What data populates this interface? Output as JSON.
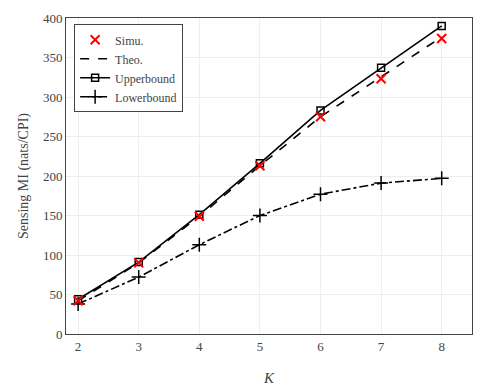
{
  "chart_data": {
    "type": "line",
    "xlabel": "K",
    "ylabel": "Sensing MI (nats/CPI)",
    "x": [
      2,
      3,
      4,
      5,
      6,
      7,
      8
    ],
    "series": [
      {
        "name": "Simu.",
        "color": "#ff0000",
        "marker": "x",
        "line_style": "none",
        "values": [
          42,
          90,
          149,
          213,
          275,
          323,
          374
        ]
      },
      {
        "name": "Theo.",
        "color": "#000000",
        "line_style": "dash",
        "values": [
          42,
          90,
          149,
          213,
          275,
          325,
          376
        ]
      },
      {
        "name": "Upperbound",
        "color": "#000000",
        "marker": "square-open",
        "line_style": "solid",
        "values": [
          44,
          91,
          151,
          216,
          283,
          337,
          390
        ]
      },
      {
        "name": "Lowerbound",
        "color": "#000000",
        "marker": "cross",
        "line_style": "dashdot",
        "values": [
          38,
          72,
          113,
          150,
          177,
          191,
          197
        ]
      }
    ],
    "xlim": [
      1.8,
      8.5
    ],
    "ylim": [
      0,
      400
    ],
    "xticks": [
      2,
      3,
      4,
      5,
      6,
      7,
      8
    ],
    "yticks": [
      0,
      50,
      100,
      150,
      200,
      250,
      300,
      350,
      400
    ],
    "grid": true,
    "legend": "upper left"
  }
}
